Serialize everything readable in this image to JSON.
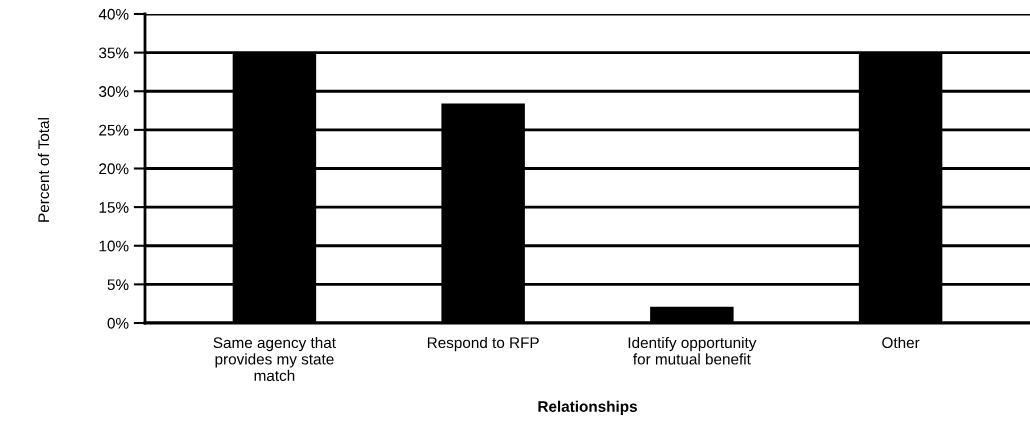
{
  "chart_data": {
    "type": "bar",
    "xlabel": "Relationships",
    "ylabel": "Percent of Total",
    "categories": [
      "Same agency that\nprovides my state\nmatch",
      "Respond to RFP",
      "Identify opportunity\nfor mutual benefit",
      "Other"
    ],
    "values": [
      35,
      28.4,
      2.1,
      35
    ],
    "color": "#000000",
    "ylim": [
      0,
      40
    ],
    "yticks": [
      {
        "value": 0,
        "label": "0%"
      },
      {
        "value": 5,
        "label": "5%"
      },
      {
        "value": 10,
        "label": "10%"
      },
      {
        "value": 15,
        "label": "15%"
      },
      {
        "value": 20,
        "label": "20%"
      },
      {
        "value": 25,
        "label": "25%"
      },
      {
        "value": 30,
        "label": "30%"
      },
      {
        "value": 35,
        "label": "35%"
      },
      {
        "value": 40,
        "label": "40%"
      }
    ],
    "grid": "y"
  }
}
